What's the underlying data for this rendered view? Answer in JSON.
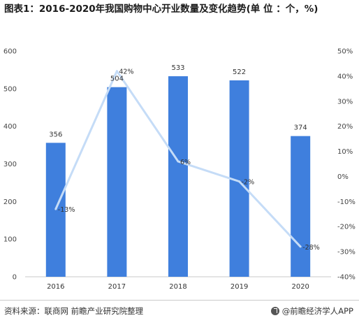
{
  "title": "图表1：2016-2020年我国购物中心开业数量及变化趋势(单 位 ：个，%)",
  "source": "资料来源：联商网 前瞻产业研究院整理",
  "brand": "@前瞻经济学人APP",
  "colors": {
    "bar": "#3f7fdd",
    "line": "#c5dcf7"
  },
  "chart_data": {
    "type": "bar",
    "categories": [
      "2016",
      "2017",
      "2018",
      "2019",
      "2020"
    ],
    "series": [
      {
        "values": [
          356,
          504,
          533,
          522,
          374
        ],
        "axis": "left",
        "kind": "bar"
      },
      {
        "values": [
          -13,
          42,
          6,
          -2,
          -28
        ],
        "axis": "right",
        "kind": "line"
      }
    ],
    "value_labels": [
      "356",
      "504",
      "533",
      "522",
      "374"
    ],
    "pct_labels": [
      "-13%",
      "42%",
      "6%",
      "-2%",
      "-28%"
    ],
    "ylim_left": [
      0,
      600
    ],
    "yticks_left": [
      "0",
      "100",
      "200",
      "300",
      "400",
      "500",
      "600"
    ],
    "ylim_right": [
      -40,
      50
    ],
    "yticks_right": [
      "-40%",
      "-30%",
      "-20%",
      "-10%",
      "0%",
      "10%",
      "20%",
      "30%",
      "40%",
      "50%"
    ],
    "grid": false,
    "legend": "none"
  }
}
